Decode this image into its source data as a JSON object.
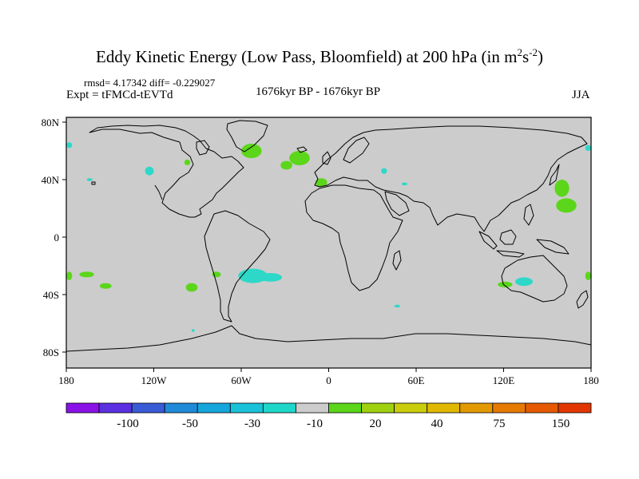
{
  "title": {
    "main": "Eddy Kinetic Energy (Low Pass, Bloomfield) at 200 hPa (in m",
    "sup1": "2",
    "mid": "s",
    "sup2": "-2",
    "close": ")"
  },
  "stats": "rmsd= 4.17342 diff= -0.229027",
  "experiment": "Expt = tFMCd-tEVTd",
  "period": "1676kyr BP - 1676kyr BP",
  "season": "JJA",
  "axes": {
    "lat_labels": [
      "80N",
      "40N",
      "0",
      "40S",
      "80S"
    ],
    "lon_labels": [
      "180",
      "120W",
      "60W",
      "0",
      "60E",
      "120E",
      "180"
    ]
  },
  "colorbar": {
    "labels": [
      "-100",
      "-50",
      "-30",
      "-10",
      "20",
      "40",
      "75",
      "150"
    ],
    "colors": [
      "#8a12e6",
      "#5b30e0",
      "#3a5bd6",
      "#1f8ad8",
      "#15a6db",
      "#19c2d8",
      "#1ed7c9",
      "#cccccc",
      "#5bd61a",
      "#9ed10f",
      "#c9cd0c",
      "#e0b800",
      "#e39a00",
      "#e67a00",
      "#e55a00",
      "#e23600"
    ]
  },
  "map": {
    "ocean_color": "#cccccc",
    "positive_color": "#5bd61a",
    "negative_color": "#2ed8c8",
    "anomaly_patches": [
      {
        "sign": "positive",
        "lon": -53,
        "lat": 60,
        "rlon": 7,
        "rlat": 5
      },
      {
        "sign": "positive",
        "lon": -20,
        "lat": 55,
        "rlon": 7,
        "rlat": 5
      },
      {
        "sign": "positive",
        "lon": -29,
        "lat": 50,
        "rlon": 4,
        "rlat": 3
      },
      {
        "sign": "positive",
        "lon": -5,
        "lat": 38,
        "rlon": 4,
        "rlat": 3
      },
      {
        "sign": "positive",
        "lon": -97,
        "lat": 52,
        "rlon": 2,
        "rlat": 2
      },
      {
        "sign": "positive",
        "lon": 160,
        "lat": 34,
        "rlon": 5,
        "rlat": 6
      },
      {
        "sign": "positive",
        "lon": 163,
        "lat": 22,
        "rlon": 7,
        "rlat": 5
      },
      {
        "sign": "positive",
        "lon": -153,
        "lat": -34,
        "rlon": 4,
        "rlat": 2
      },
      {
        "sign": "positive",
        "lon": -94,
        "lat": -35,
        "rlon": 4,
        "rlat": 3
      },
      {
        "sign": "positive",
        "lon": -77,
        "lat": -26,
        "rlon": 3,
        "rlat": 2
      },
      {
        "sign": "positive",
        "lon": -166,
        "lat": -26,
        "rlon": 5,
        "rlat": 2
      },
      {
        "sign": "positive",
        "lon": -178,
        "lat": -27,
        "rlon": 2,
        "rlat": 3
      },
      {
        "sign": "positive",
        "lon": 178,
        "lat": -27,
        "rlon": 2,
        "rlat": 3
      },
      {
        "sign": "positive",
        "lon": 121,
        "lat": -33,
        "rlon": 5,
        "rlat": 2
      },
      {
        "sign": "negative",
        "lon": -52,
        "lat": -27,
        "rlon": 10,
        "rlat": 5
      },
      {
        "sign": "negative",
        "lon": -40,
        "lat": -28,
        "rlon": 8,
        "rlat": 3
      },
      {
        "sign": "negative",
        "lon": 134,
        "lat": -31,
        "rlon": 6,
        "rlat": 3
      },
      {
        "sign": "negative",
        "lon": -123,
        "lat": 46,
        "rlon": 3,
        "rlat": 3
      },
      {
        "sign": "negative",
        "lon": -178,
        "lat": 64,
        "rlon": 2,
        "rlat": 2
      },
      {
        "sign": "negative",
        "lon": 178,
        "lat": 62,
        "rlon": 2,
        "rlat": 2
      },
      {
        "sign": "negative",
        "lon": -164,
        "lat": 40,
        "rlon": 2,
        "rlat": 1
      },
      {
        "sign": "negative",
        "lon": 38,
        "lat": 46,
        "rlon": 2,
        "rlat": 2
      },
      {
        "sign": "negative",
        "lon": 52,
        "lat": 37,
        "rlon": 2,
        "rlat": 1
      },
      {
        "sign": "negative",
        "lon": 47,
        "lat": -48,
        "rlon": 2,
        "rlat": 1
      },
      {
        "sign": "negative",
        "lon": -93,
        "lat": -65,
        "rlon": 1,
        "rlat": 1
      }
    ]
  }
}
